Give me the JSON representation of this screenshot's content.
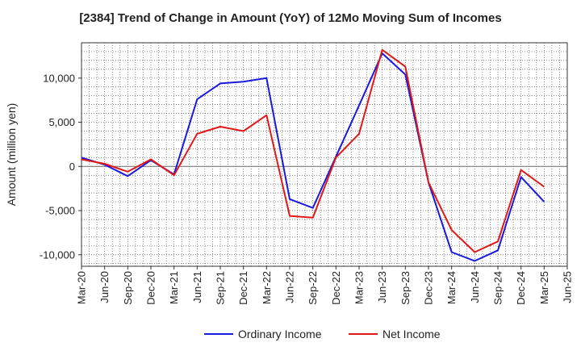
{
  "chart_data": {
    "type": "line",
    "title": "[2384]  Trend of Change in Amount (YoY) of 12Mo Moving Sum of Incomes",
    "ylabel": "Amount (million yen)",
    "xlabel": "",
    "ylim": [
      -11300,
      14000
    ],
    "yticks": [
      -10000,
      -5000,
      0,
      5000,
      10000
    ],
    "ytick_labels": [
      "-10,000",
      "-5,000",
      "0",
      "5,000",
      "10,000"
    ],
    "xtick_labels": [
      "Mar-20",
      "Jun-20",
      "Sep-20",
      "Dec-20",
      "Mar-21",
      "Jun-21",
      "Sep-21",
      "Dec-21",
      "Mar-22",
      "Jun-22",
      "Sep-22",
      "Dec-22",
      "Mar-23",
      "Jun-23",
      "Sep-23",
      "Dec-23",
      "Mar-24",
      "Jun-24",
      "Sep-24",
      "Dec-24",
      "Mar-25",
      "Jun-25"
    ],
    "grid": true,
    "legend_position": "bottom",
    "series": [
      {
        "name": "Ordinary Income",
        "color": "#1a1adc",
        "values": [
          1000,
          200,
          -1100,
          700,
          -900,
          7600,
          9400,
          9600,
          10000,
          -3700,
          -4700,
          1100,
          6900,
          12800,
          10400,
          -1800,
          -9700,
          -10700,
          -9500,
          -1200,
          -4000
        ]
      },
      {
        "name": "Net Income",
        "color": "#e01818",
        "values": [
          800,
          300,
          -600,
          800,
          -1000,
          3700,
          4500,
          4000,
          5800,
          -5600,
          -5800,
          1000,
          3700,
          13200,
          11300,
          -1800,
          -7200,
          -9700,
          -8500,
          -400,
          -2300
        ]
      }
    ]
  }
}
